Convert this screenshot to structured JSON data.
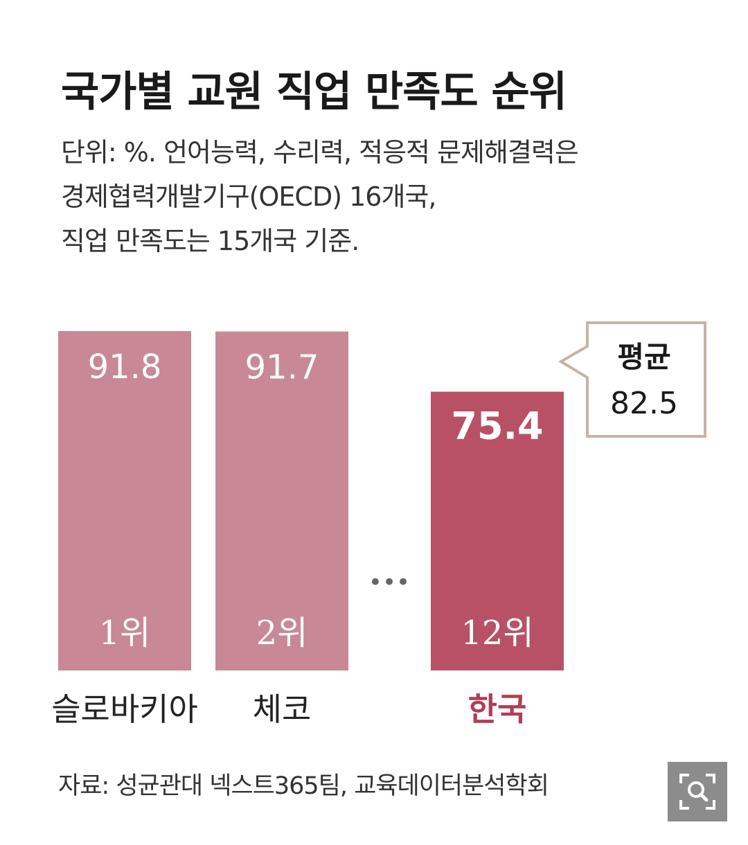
{
  "title": "국가별 교원 직업 만족도 순위",
  "subtitle_lines": [
    "단위: %. 언어능력, 수리력, 적응적 문제해결력은",
    "경제협력개발기구(OECD) 16개국,",
    "직업 만족도는 15개국 기준."
  ],
  "chart_data": {
    "type": "bar",
    "categories": [
      "슬로바키아",
      "체코",
      "한국"
    ],
    "values": [
      91.8,
      91.7,
      75.4
    ],
    "value_labels": [
      "91.8",
      "91.7",
      "75.4"
    ],
    "ranks": [
      "1위",
      "2위",
      "12위"
    ],
    "ylim": [
      0,
      91.8
    ],
    "ellipsis": "•••",
    "average": {
      "label": "평균",
      "value": 82.5,
      "value_label": "82.5"
    },
    "colors": {
      "default_bar": "#c98896",
      "highlight_bar": "#b85166",
      "highlight_text": "#b23d56",
      "callout_border": "#c6b4a4"
    }
  },
  "source": "자료: 성균관대 넥스트365팀, 교육데이터분석학회",
  "zoom_button": {
    "icon": "zoom-search-icon"
  }
}
